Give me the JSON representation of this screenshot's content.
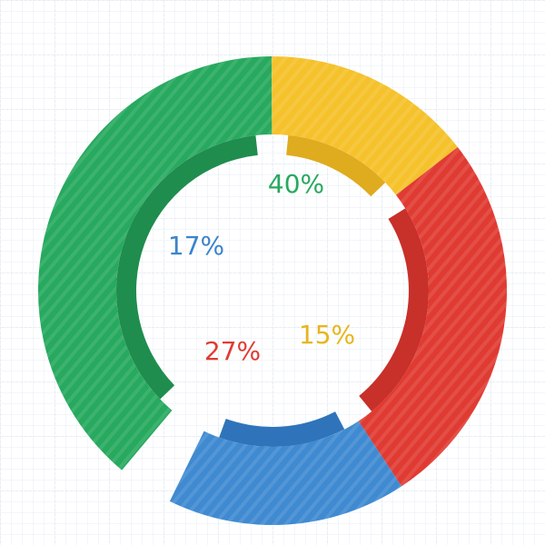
{
  "chart_data": {
    "type": "pie",
    "variant": "donut",
    "categories": [
      "",
      "",
      "",
      ""
    ],
    "values": [
      40,
      15,
      27,
      17
    ],
    "labels": [
      "40%",
      "15%",
      "27%",
      "17%"
    ],
    "colors": [
      "#27a95f",
      "#f5c22b",
      "#e03b32",
      "#3f8ad1"
    ],
    "inner_colors": [
      "#1f8d4e",
      "#dfab1f",
      "#c8302a",
      "#2f74ba"
    ],
    "label_colors": [
      "#27a95f",
      "#e8b51d",
      "#e03b32",
      "#3b84c9"
    ],
    "title": "",
    "legend": "none",
    "grid": true
  },
  "colors": {
    "background": "#ffffff",
    "grid_minor": "#e6edf5",
    "grid_major": "#d2dcea"
  }
}
